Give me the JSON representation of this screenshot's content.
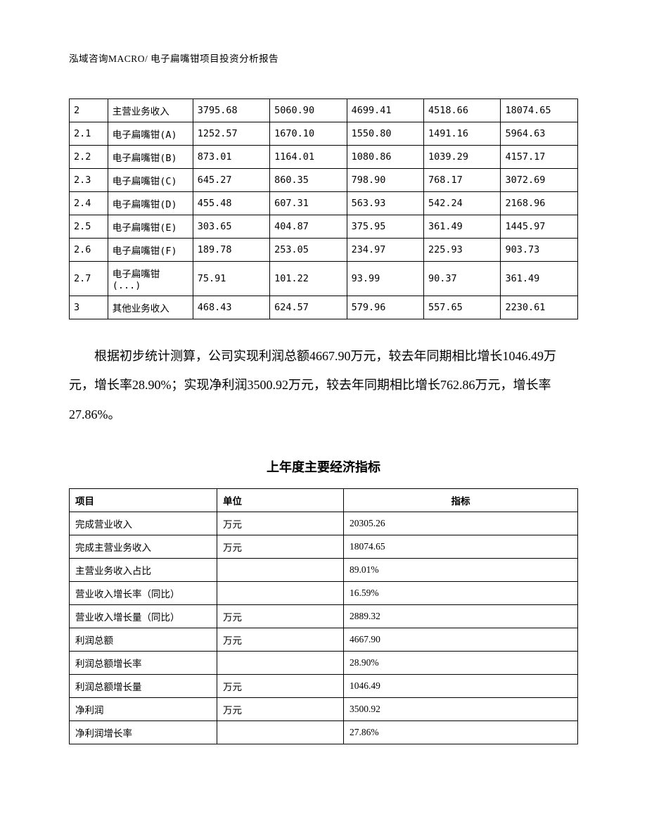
{
  "header": {
    "text": "泓域咨询MACRO/   电子扁嘴钳项目投资分析报告"
  },
  "table1": {
    "rows": [
      {
        "c0": "2",
        "c1": "主营业务收入",
        "c2": "3795.68",
        "c3": "5060.90",
        "c4": "4699.41",
        "c5": "4518.66",
        "c6": "18074.65"
      },
      {
        "c0": "2.1",
        "c1": "电子扁嘴钳(A)",
        "c2": "1252.57",
        "c3": "1670.10",
        "c4": "1550.80",
        "c5": "1491.16",
        "c6": "5964.63"
      },
      {
        "c0": "2.2",
        "c1": "电子扁嘴钳(B)",
        "c2": "873.01",
        "c3": "1164.01",
        "c4": "1080.86",
        "c5": "1039.29",
        "c6": "4157.17"
      },
      {
        "c0": "2.3",
        "c1": "电子扁嘴钳(C)",
        "c2": "645.27",
        "c3": "860.35",
        "c4": "798.90",
        "c5": "768.17",
        "c6": "3072.69"
      },
      {
        "c0": "2.4",
        "c1": "电子扁嘴钳(D)",
        "c2": "455.48",
        "c3": "607.31",
        "c4": "563.93",
        "c5": "542.24",
        "c6": "2168.96"
      },
      {
        "c0": "2.5",
        "c1": "电子扁嘴钳(E)",
        "c2": "303.65",
        "c3": "404.87",
        "c4": "375.95",
        "c5": "361.49",
        "c6": "1445.97"
      },
      {
        "c0": "2.6",
        "c1": "电子扁嘴钳(F)",
        "c2": "189.78",
        "c3": "253.05",
        "c4": "234.97",
        "c5": "225.93",
        "c6": "903.73"
      },
      {
        "c0": "2.7",
        "c1": "电子扁嘴钳(...)",
        "c2": "75.91",
        "c3": "101.22",
        "c4": "93.99",
        "c5": "90.37",
        "c6": "361.49"
      },
      {
        "c0": "3",
        "c1": "其他业务收入",
        "c2": "468.43",
        "c3": "624.57",
        "c4": "579.96",
        "c5": "557.65",
        "c6": "2230.61"
      }
    ]
  },
  "paragraph": {
    "text": "根据初步统计测算，公司实现利润总额4667.90万元，较去年同期相比增长1046.49万元，增长率28.90%；实现净利润3500.92万元，较去年同期相比增长762.86万元，增长率27.86%。"
  },
  "table2": {
    "title": "上年度主要经济指标",
    "headers": {
      "h0": "项目",
      "h1": "单位",
      "h2": "指标"
    },
    "rows": [
      {
        "c0": "完成营业收入",
        "c1": "万元",
        "c2": "20305.26"
      },
      {
        "c0": "完成主营业务收入",
        "c1": "万元",
        "c2": "18074.65"
      },
      {
        "c0": "主营业务收入占比",
        "c1": "",
        "c2": "89.01%"
      },
      {
        "c0": "营业收入增长率（同比）",
        "c1": "",
        "c2": "16.59%"
      },
      {
        "c0": "营业收入增长量（同比）",
        "c1": "万元",
        "c2": "2889.32"
      },
      {
        "c0": "利润总额",
        "c1": "万元",
        "c2": "4667.90"
      },
      {
        "c0": "利润总额增长率",
        "c1": "",
        "c2": "28.90%"
      },
      {
        "c0": "利润总额增长量",
        "c1": "万元",
        "c2": "1046.49"
      },
      {
        "c0": "净利润",
        "c1": "万元",
        "c2": "3500.92"
      },
      {
        "c0": "净利润增长率",
        "c1": "",
        "c2": "27.86%"
      }
    ]
  }
}
